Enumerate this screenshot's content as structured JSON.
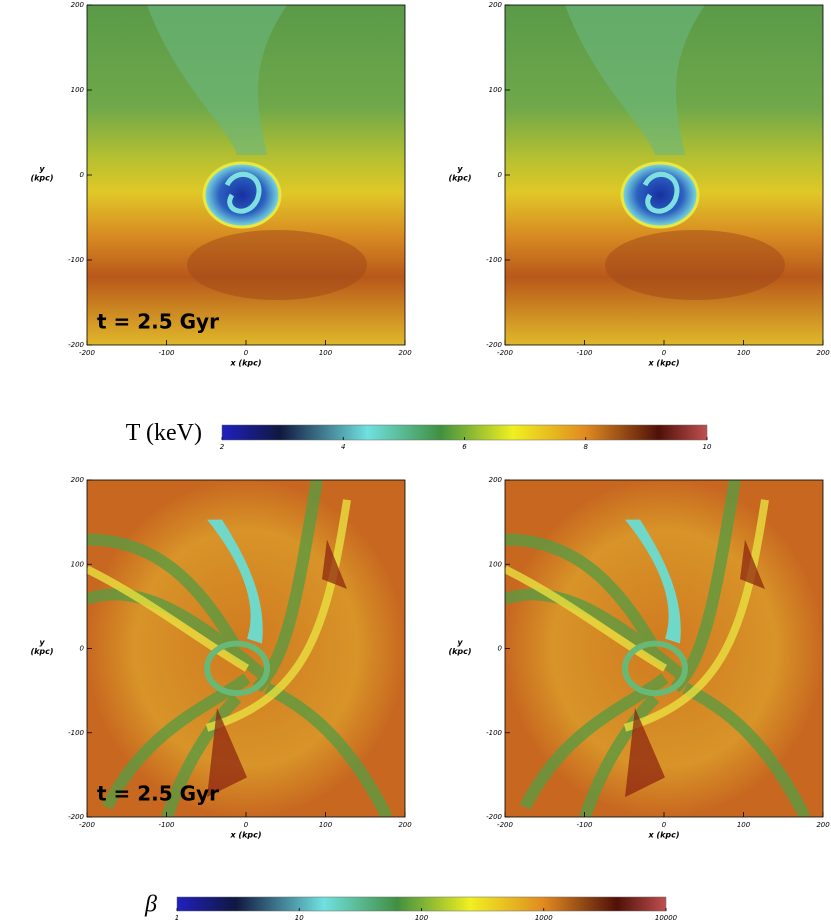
{
  "panels": [
    {
      "xlim": [
        -200,
        200
      ],
      "ylim": [
        -200,
        200
      ],
      "xticks": [
        -200,
        -100,
        0,
        100,
        200
      ],
      "yticks": [
        -200,
        -100,
        0,
        100,
        200
      ],
      "x_label": "x (kpc)",
      "y_label": [
        "y",
        "(kpc)"
      ],
      "annotation": "t = 2.5 Gyr"
    },
    {
      "xlim": [
        -200,
        200
      ],
      "ylim": [
        -200,
        200
      ],
      "xticks": [
        -200,
        -100,
        0,
        100,
        200
      ],
      "yticks": [
        -200,
        -100,
        0,
        100,
        200
      ],
      "x_label": "x (kpc)",
      "y_label": [
        "y",
        "(kpc)"
      ]
    },
    {
      "xlim": [
        -200,
        200
      ],
      "ylim": [
        -200,
        200
      ],
      "xticks": [
        -200,
        -100,
        0,
        100,
        200
      ],
      "yticks": [
        -200,
        -100,
        0,
        100,
        200
      ],
      "x_label": "x (kpc)",
      "y_label": [
        "y",
        "(kpc)"
      ],
      "annotation": "t = 2.5 Gyr"
    },
    {
      "xlim": [
        -200,
        200
      ],
      "ylim": [
        -200,
        200
      ],
      "xticks": [
        -200,
        -100,
        0,
        100,
        200
      ],
      "yticks": [
        -200,
        -100,
        0,
        100,
        200
      ],
      "x_label": "x (kpc)",
      "y_label": [
        "y",
        "(kpc)"
      ]
    }
  ],
  "colorbars": [
    {
      "label": "T (keV)",
      "lim": [
        2,
        10
      ],
      "ticks": [
        2,
        4,
        6,
        8,
        10
      ],
      "scale": "linear"
    },
    {
      "label": "β",
      "lim": [
        1,
        10000
      ],
      "ticks": [
        1,
        10,
        100,
        1000,
        10000
      ],
      "scale": "log"
    }
  ]
}
